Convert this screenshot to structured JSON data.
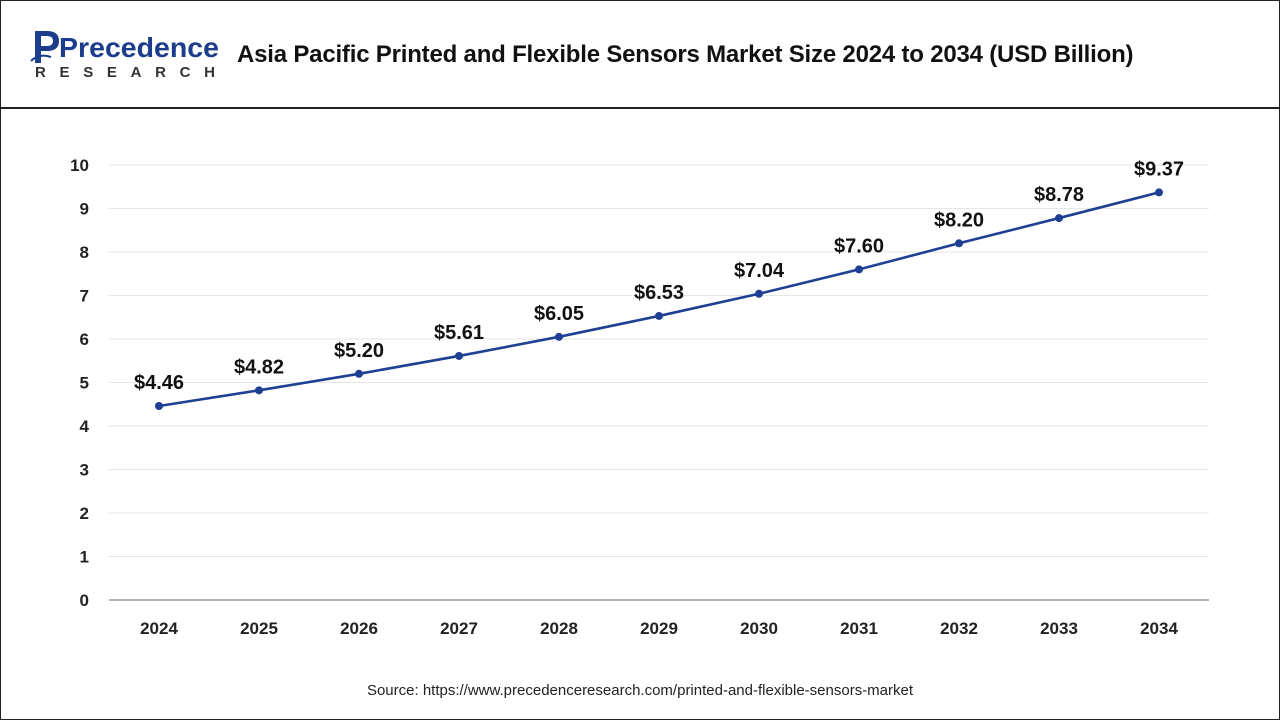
{
  "header": {
    "logo_word": "Precedence",
    "logo_sub": "RESEARCH",
    "title": "Asia Pacific Printed and Flexible Sensors Market Size 2024 to 2034 (USD Billion)"
  },
  "colors": {
    "line": "#1f3f93",
    "logo_blue": "#1c3c8c",
    "grid": "#e6e6e6",
    "axis": "#9a9a9a"
  },
  "chart_data": {
    "type": "line",
    "title": "Asia Pacific Printed and Flexible Sensors Market Size 2024 to 2034 (USD Billion)",
    "xlabel": "",
    "ylabel": "",
    "ylim": [
      0,
      10
    ],
    "yticks": [
      "0",
      "1",
      "2",
      "3",
      "4",
      "5",
      "6",
      "7",
      "8",
      "9",
      "10"
    ],
    "grid": true,
    "categories": [
      "2024",
      "2025",
      "2026",
      "2027",
      "2028",
      "2029",
      "2030",
      "2031",
      "2032",
      "2033",
      "2034"
    ],
    "values": [
      4.46,
      4.82,
      5.2,
      5.61,
      6.05,
      6.53,
      7.04,
      7.6,
      8.2,
      8.78,
      9.37
    ],
    "labels": [
      "$4.46",
      "$4.82",
      "$5.20",
      "$5.61",
      "$6.05",
      "$6.53",
      "$7.04",
      "$7.60",
      "$8.20",
      "$8.78",
      "$9.37"
    ]
  },
  "footer": {
    "source": "Source: https://www.precedenceresearch.com/printed-and-flexible-sensors-market"
  }
}
